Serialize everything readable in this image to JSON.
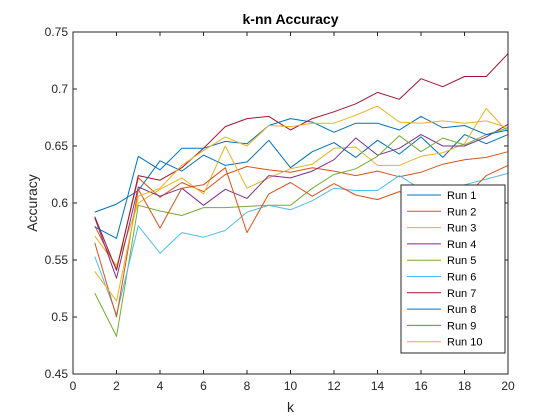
{
  "chart_data": {
    "type": "line",
    "title": "k-nn Accuracy",
    "xlabel": "k",
    "ylabel": "Accuracy",
    "xlim": [
      0,
      20
    ],
    "ylim": [
      0.45,
      0.75
    ],
    "xticks": [
      0,
      2,
      4,
      6,
      8,
      10,
      12,
      14,
      16,
      18,
      20
    ],
    "yticks": [
      0.45,
      0.5,
      0.55,
      0.6,
      0.65,
      0.7,
      0.75
    ],
    "xtick_labels": [
      "0",
      "2",
      "4",
      "6",
      "8",
      "10",
      "12",
      "14",
      "16",
      "18",
      "20"
    ],
    "ytick_labels": [
      "0.45",
      "0.5",
      "0.55",
      "0.6",
      "0.65",
      "0.7",
      "0.75"
    ],
    "grid": false,
    "legend_position": "lower-right",
    "x": [
      1,
      2,
      3,
      4,
      5,
      6,
      7,
      8,
      9,
      10,
      11,
      12,
      13,
      14,
      15,
      16,
      17,
      18,
      19,
      20
    ],
    "series": [
      {
        "name": "Run 1",
        "color": "#0072BD",
        "values": [
          0.592,
          0.599,
          0.611,
          0.637,
          0.628,
          0.642,
          0.633,
          0.636,
          0.655,
          0.631,
          0.645,
          0.653,
          0.64,
          0.655,
          0.643,
          0.658,
          0.64,
          0.66,
          0.652,
          0.66
        ]
      },
      {
        "name": "Run 2",
        "color": "#D95319",
        "values": [
          0.58,
          0.542,
          0.622,
          0.605,
          0.618,
          0.61,
          0.625,
          0.632,
          0.629,
          0.627,
          0.631,
          0.628,
          0.624,
          0.628,
          0.623,
          0.627,
          0.634,
          0.638,
          0.64,
          0.645
        ]
      },
      {
        "name": "Run 3",
        "color": "#EDB120",
        "values": [
          0.571,
          0.545,
          0.6,
          0.612,
          0.622,
          0.608,
          0.65,
          0.613,
          0.622,
          0.63,
          0.634,
          0.648,
          0.649,
          0.633,
          0.633,
          0.641,
          0.644,
          0.652,
          0.683,
          0.662
        ]
      },
      {
        "name": "Run 4",
        "color": "#7E2F8E",
        "values": [
          0.587,
          0.534,
          0.614,
          0.606,
          0.613,
          0.598,
          0.612,
          0.604,
          0.624,
          0.622,
          0.628,
          0.638,
          0.657,
          0.642,
          0.648,
          0.66,
          0.65,
          0.65,
          0.658,
          0.669
        ]
      },
      {
        "name": "Run 5",
        "color": "#77AC30",
        "values": [
          0.521,
          0.483,
          0.598,
          0.593,
          0.589,
          0.596,
          0.596,
          0.597,
          0.598,
          0.598,
          0.613,
          0.625,
          0.63,
          0.641,
          0.659,
          0.645,
          0.657,
          0.651,
          0.66,
          0.666
        ]
      },
      {
        "name": "Run 6",
        "color": "#4DBEEE",
        "values": [
          0.553,
          0.502,
          0.58,
          0.556,
          0.574,
          0.57,
          0.576,
          0.592,
          0.598,
          0.594,
          0.602,
          0.613,
          0.611,
          0.611,
          0.624,
          0.612,
          0.612,
          0.616,
          0.621,
          0.626
        ]
      },
      {
        "name": "Run 7",
        "color": "#A2142F",
        "values": [
          0.588,
          0.541,
          0.624,
          0.62,
          0.631,
          0.648,
          0.667,
          0.674,
          0.676,
          0.664,
          0.674,
          0.68,
          0.687,
          0.697,
          0.691,
          0.709,
          0.702,
          0.711,
          0.711,
          0.731
        ]
      },
      {
        "name": "Run 8",
        "color": "#0072BD",
        "values": [
          0.579,
          0.569,
          0.641,
          0.629,
          0.648,
          0.648,
          0.654,
          0.652,
          0.668,
          0.674,
          0.671,
          0.662,
          0.67,
          0.67,
          0.664,
          0.676,
          0.666,
          0.668,
          0.66,
          0.664
        ]
      },
      {
        "name": "Run 9",
        "color": "#D95319",
        "values": [
          0.565,
          0.5,
          0.612,
          0.578,
          0.613,
          0.616,
          0.631,
          0.574,
          0.608,
          0.618,
          0.606,
          0.617,
          0.607,
          0.603,
          0.61,
          0.603,
          0.609,
          0.605,
          0.624,
          0.633
        ]
      },
      {
        "name": "Run 10",
        "color": "#EDB120",
        "values": [
          0.54,
          0.514,
          0.606,
          0.613,
          0.633,
          0.646,
          0.658,
          0.65,
          0.668,
          0.667,
          0.67,
          0.67,
          0.677,
          0.685,
          0.671,
          0.67,
          0.672,
          0.67,
          0.672,
          0.666
        ]
      }
    ]
  }
}
